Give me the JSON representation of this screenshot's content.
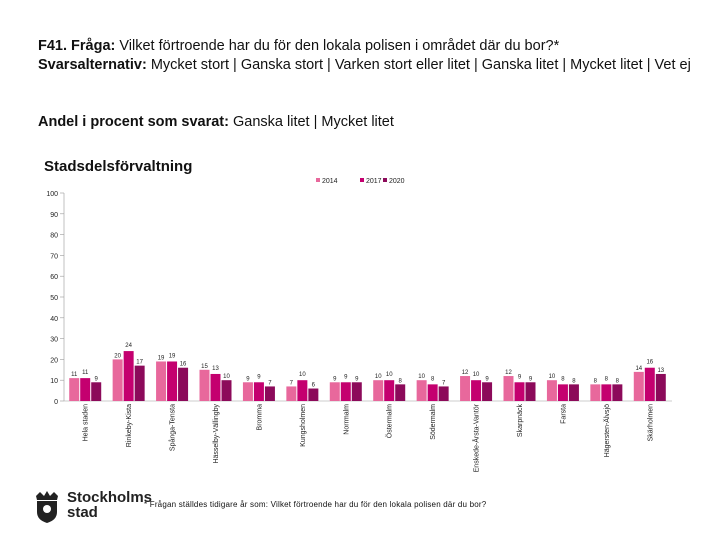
{
  "header": {
    "question_label": "F41. Fråga:",
    "question_text": "Vilket förtroende har du för den lokala polisen i området där du bor?*",
    "answers_label": "Svarsalternativ:",
    "answers_text": "Mycket stort | Ganska stort | Varken stort eller litet | Ganska litet | Mycket litet | Vet ej",
    "share_label": "Andel i procent som svarat:",
    "share_text": "Ganska litet | Mycket litet"
  },
  "chart_title": "Stadsdelsförvaltning",
  "footnote": "* Frågan ställdes tidigare år som: Vilket förtroende har du för den lokala polisen där du bor?",
  "logo": {
    "line1": "Stockholms",
    "line2": "stad"
  },
  "colors": {
    "2014": "#e8689c",
    "2017": "#c4006f",
    "2020": "#8c0a5a"
  },
  "chart_data": {
    "type": "bar",
    "title": "Stadsdelsförvaltning",
    "ylim": [
      0,
      100
    ],
    "yticks": [
      0,
      10,
      20,
      30,
      40,
      50,
      60,
      70,
      80,
      90,
      100
    ],
    "legend_position": "top-right",
    "categories": [
      "Hela staden",
      "Rinkeby-Kista",
      "Spånga-Tensta",
      "Hässelby-Vällingby",
      "Bromma",
      "Kungsholmen",
      "Norrmalm",
      "Östermalm",
      "Södermalm",
      "Enskede-Årsta-Vantör",
      "Skarpnäck",
      "Farsta",
      "Hägersten-Älvsjö",
      "Skärholmen"
    ],
    "series": [
      {
        "name": "2014",
        "values": [
          11,
          20,
          19,
          15,
          9,
          7,
          9,
          10,
          10,
          12,
          12,
          10,
          8,
          14
        ]
      },
      {
        "name": "2017",
        "values": [
          11,
          24,
          19,
          13,
          9,
          10,
          9,
          10,
          8,
          10,
          9,
          8,
          8,
          16
        ]
      },
      {
        "name": "2020",
        "values": [
          9,
          17,
          16,
          10,
          7,
          6,
          9,
          8,
          7,
          9,
          9,
          8,
          8,
          13
        ]
      }
    ]
  }
}
